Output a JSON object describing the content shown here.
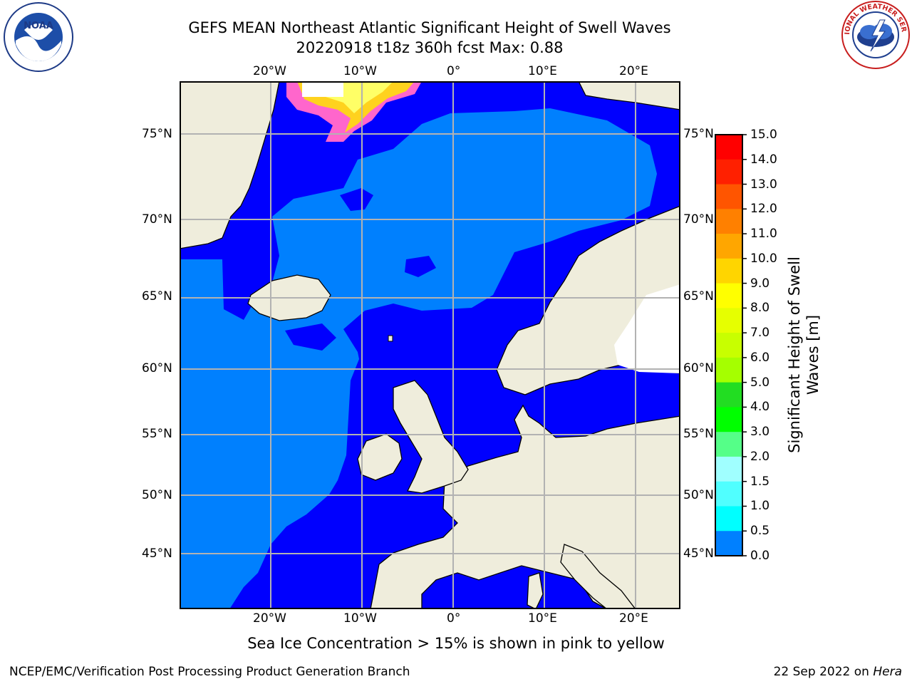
{
  "header": {
    "title_line1": "GEFS MEAN Northeast Atlantic Significant Height of Swell Waves",
    "title_line2": "20220918 t18z 360h fcst   Max: 0.88"
  },
  "logos": {
    "noaa": {
      "text": "NOAA",
      "ring_text": "NATIONAL OCEANIC AND ATMOSPHERIC ADMINISTRATION · U.S. DEPARTMENT OF COMMERCE"
    },
    "nws": {
      "ring_text": "NATIONAL WEATHER SERVICE"
    }
  },
  "map": {
    "lon_labels": [
      "20°W",
      "10°W",
      "0°",
      "10°E",
      "20°E"
    ],
    "lat_labels": [
      "75°N",
      "70°N",
      "65°N",
      "60°N",
      "55°N",
      "50°N",
      "45°N"
    ],
    "colors": {
      "land": "#efeddc",
      "ocean_low": "#0000fe",
      "ocean_mid": "#0080fe",
      "grid": "#b2b2b2"
    },
    "caption": "Sea Ice Concentration > 15% is shown in pink to yellow"
  },
  "colorbar": {
    "title": "Significant Height of Swell Waves [m]",
    "ticks": [
      "15.0",
      "14.0",
      "13.0",
      "12.0",
      "11.0",
      "10.0",
      "9.0",
      "8.0",
      "7.0",
      "6.0",
      "5.0",
      "4.0",
      "3.0",
      "2.0",
      "1.5",
      "1.0",
      "0.5",
      "0.0"
    ],
    "colors": [
      "#ff0000",
      "#ff2000",
      "#ff5500",
      "#ff8000",
      "#ffa600",
      "#ffd500",
      "#ffff00",
      "#e6ff00",
      "#c8ff00",
      "#a5ff00",
      "#22dd22",
      "#00ff00",
      "#55ff88",
      "#a0ffff",
      "#50ffff",
      "#00ffff",
      "#0080ff",
      "#0000ff"
    ]
  },
  "footer": {
    "credit": "NCEP/EMC/Verification Post Processing Product Generation Branch",
    "date": "22 Sep 2022 on",
    "machine": "Hera"
  }
}
